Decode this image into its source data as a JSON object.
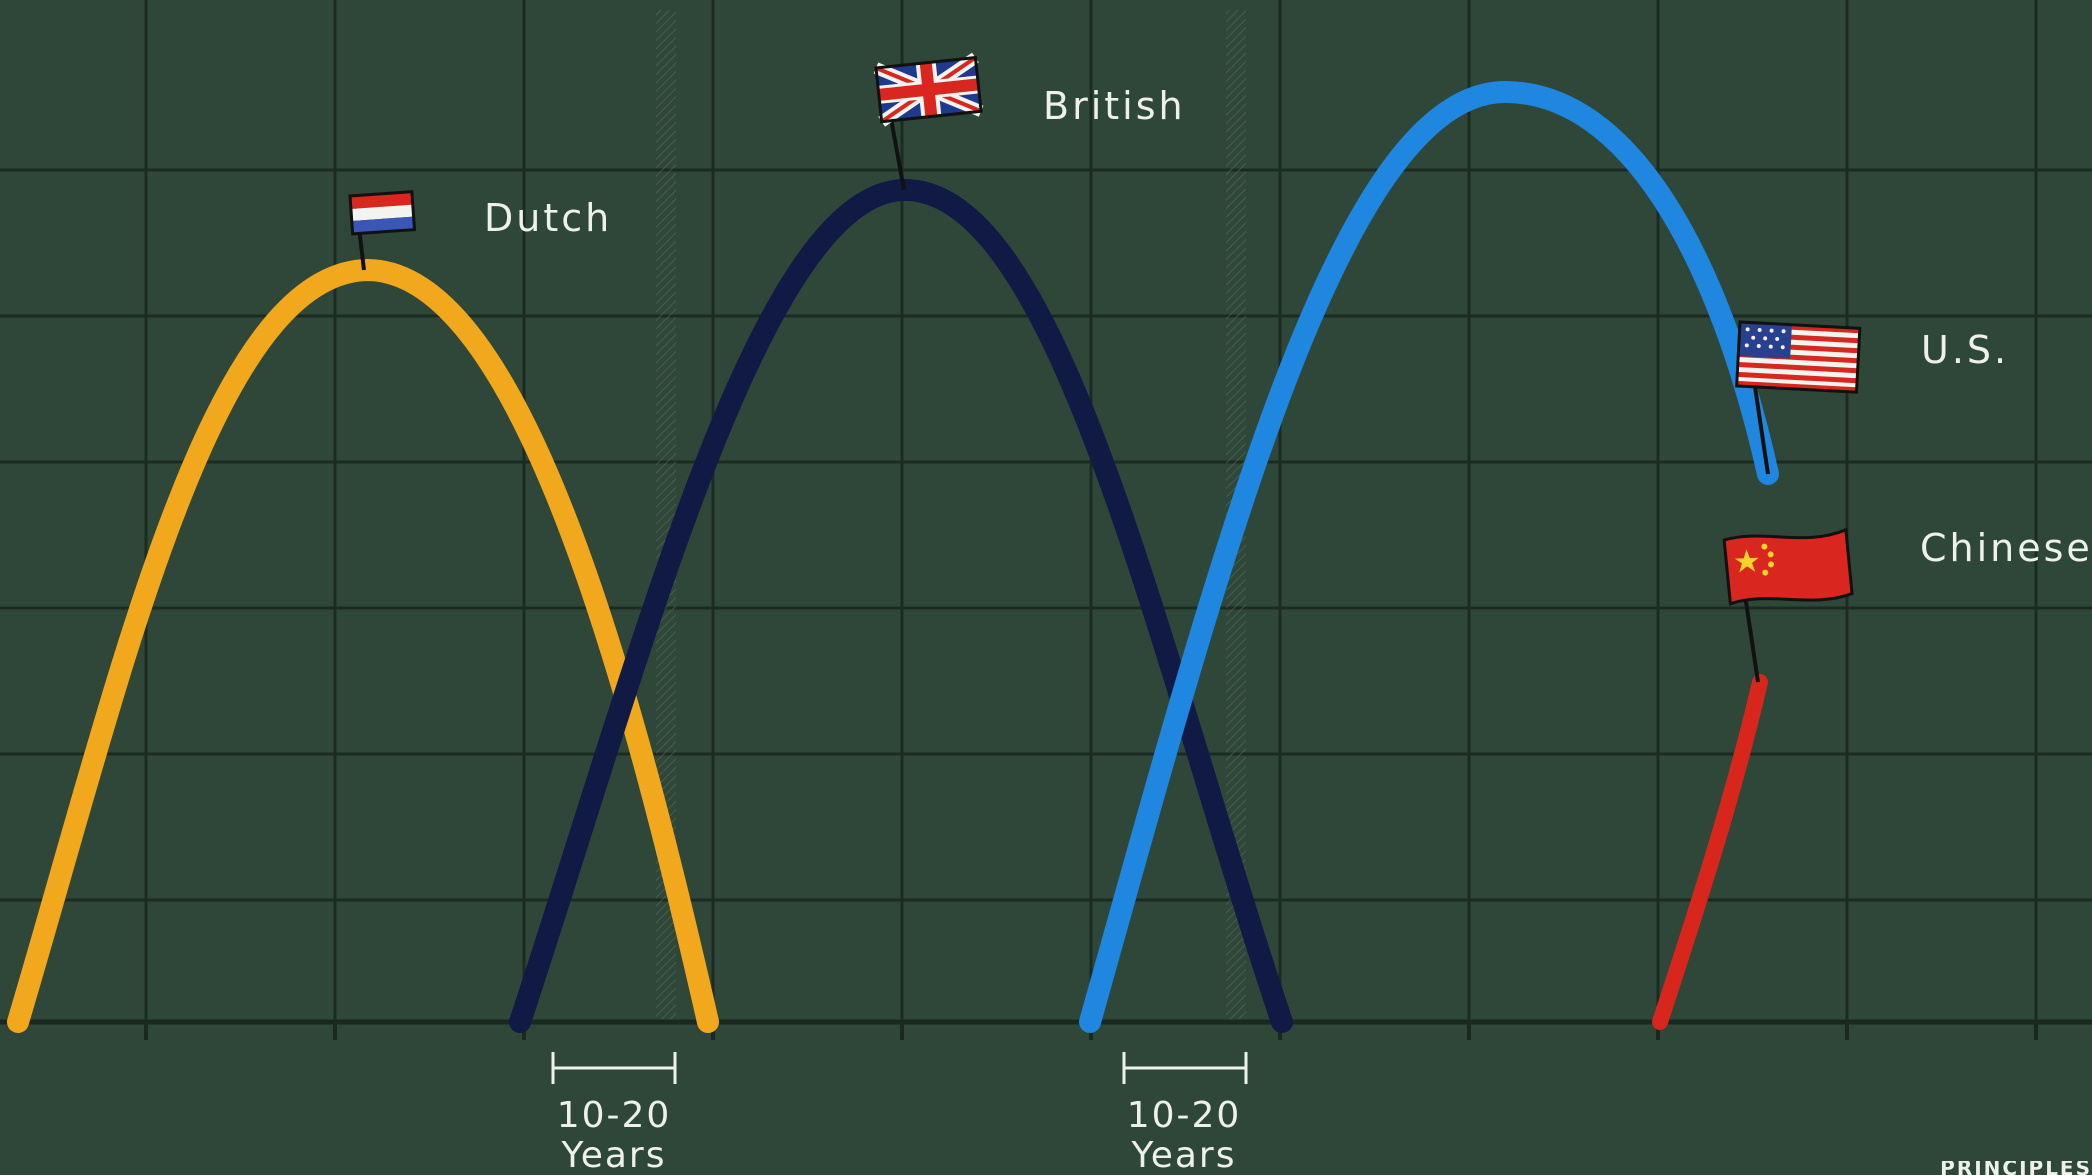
{
  "empires": [
    {
      "key": "dutch",
      "label": "Dutch",
      "color": "#f2a81d",
      "icon": "netherlands-flag-icon"
    },
    {
      "key": "british",
      "label": "British",
      "color": "#111a45",
      "icon": "union-jack-flag-icon"
    },
    {
      "key": "us",
      "label": "U.S.",
      "color": "#1f87e0",
      "icon": "us-flag-icon"
    },
    {
      "key": "chinese",
      "label": "Chinese",
      "color": "#d8261d",
      "icon": "china-flag-icon"
    }
  ],
  "transitions": [
    {
      "range": "10-20",
      "unit": "Years"
    },
    {
      "range": "10-20",
      "unit": "Years"
    }
  ],
  "colors": {
    "background": "#2f4739",
    "grid": "#1c2b22",
    "text": "#eef0ea"
  },
  "watermark": "PRINCIPLES"
}
